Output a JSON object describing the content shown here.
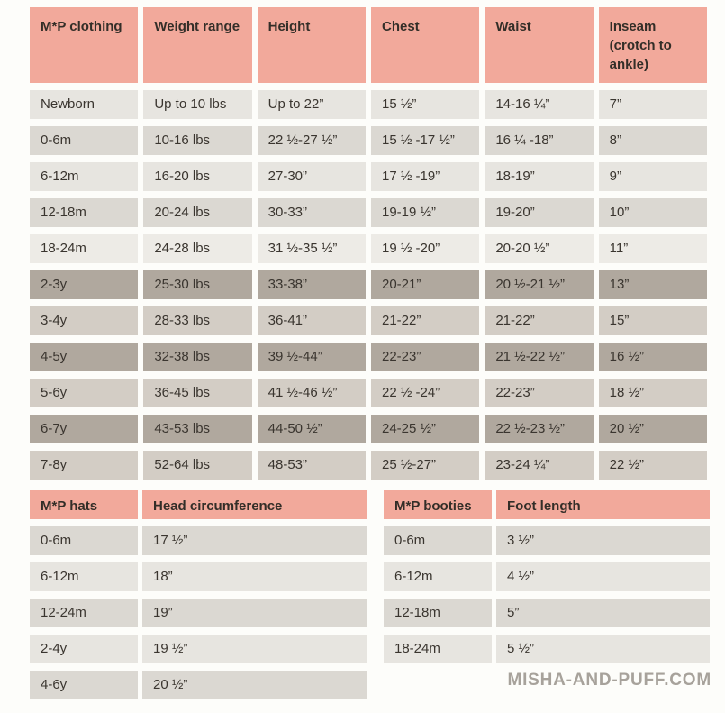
{
  "palette": {
    "header_pink": "#f2a99b",
    "row_light": "#e7e5e0",
    "row_mid": "#dbd8d2",
    "row_lighter": "#edebe6",
    "row_taupe_dark": "#b0a89e",
    "row_taupe": "#d3cdc5",
    "text_dark": "#3a352f",
    "footer_gray": "#a7a29b",
    "page_bg": "#fdfdfa"
  },
  "main_table": {
    "headers": [
      "M*P clothing",
      "Weight range",
      "Height",
      "Chest",
      "Waist",
      "Inseam (crotch to ankle)"
    ],
    "rows": [
      {
        "shade": "row_light",
        "cells": [
          "Newborn",
          "Up to 10 lbs",
          "Up to 22”",
          "15 ½”",
          "14-16 ¼”",
          "7”"
        ]
      },
      {
        "shade": "row_mid",
        "cells": [
          "0-6m",
          "10-16 lbs",
          "22 ½-27 ½”",
          "15 ½ -17 ½”",
          "16 ¼ -18”",
          "8”"
        ]
      },
      {
        "shade": "row_light",
        "cells": [
          "6-12m",
          "16-20 lbs",
          "27-30”",
          "17 ½ -19”",
          "18-19”",
          "9”"
        ]
      },
      {
        "shade": "row_mid",
        "cells": [
          "12-18m",
          "20-24 lbs",
          "30-33”",
          "19-19 ½”",
          "19-20”",
          "10”"
        ]
      },
      {
        "shade": "row_lighter",
        "cells": [
          "18-24m",
          "24-28 lbs",
          "31 ½-35 ½”",
          "19 ½ -20”",
          "20-20 ½”",
          "11”"
        ]
      },
      {
        "shade": "row_taupe_dark",
        "cells": [
          "2-3y",
          "25-30 lbs",
          "33-38”",
          "20-21”",
          "20 ½-21 ½”",
          "13”"
        ]
      },
      {
        "shade": "row_taupe",
        "cells": [
          "3-4y",
          "28-33 lbs",
          "36-41”",
          "21-22”",
          "21-22”",
          "15”"
        ]
      },
      {
        "shade": "row_taupe_dark",
        "cells": [
          "4-5y",
          "32-38 lbs",
          "39 ½-44”",
          "22-23”",
          "21 ½-22 ½”",
          "16 ½”"
        ]
      },
      {
        "shade": "row_taupe",
        "cells": [
          "5-6y",
          "36-45 lbs",
          "41 ½-46 ½”",
          "22 ½ -24”",
          "22-23”",
          "18 ½”"
        ]
      },
      {
        "shade": "row_taupe_dark",
        "cells": [
          "6-7y",
          "43-53 lbs",
          "44-50 ½”",
          "24-25 ½”",
          "22 ½-23 ½”",
          "20 ½”"
        ]
      },
      {
        "shade": "row_taupe",
        "cells": [
          "7-8y",
          "52-64 lbs",
          "48-53”",
          "25 ½-27”",
          "23-24 ¼”",
          "22 ½”"
        ]
      }
    ]
  },
  "hats_table": {
    "headers": [
      "M*P hats",
      "Head circumference"
    ],
    "rows": [
      {
        "shade": "row_mid",
        "cells": [
          "0-6m",
          "17 ½”"
        ]
      },
      {
        "shade": "row_light",
        "cells": [
          "6-12m",
          "18”"
        ]
      },
      {
        "shade": "row_mid",
        "cells": [
          "12-24m",
          "19”"
        ]
      },
      {
        "shade": "row_light",
        "cells": [
          "2-4y",
          "19 ½”"
        ]
      },
      {
        "shade": "row_mid",
        "cells": [
          "4-6y",
          "20 ½”"
        ]
      }
    ]
  },
  "booties_table": {
    "headers": [
      "M*P booties",
      "Foot length"
    ],
    "rows": [
      {
        "shade": "row_mid",
        "cells": [
          "0-6m",
          "3 ½”"
        ]
      },
      {
        "shade": "row_light",
        "cells": [
          "6-12m",
          "4 ½”"
        ]
      },
      {
        "shade": "row_mid",
        "cells": [
          "12-18m",
          "5”"
        ]
      },
      {
        "shade": "row_light",
        "cells": [
          "18-24m",
          "5 ½”"
        ]
      }
    ]
  },
  "footer": {
    "website": "MISHA-AND-PUFF.COM"
  }
}
